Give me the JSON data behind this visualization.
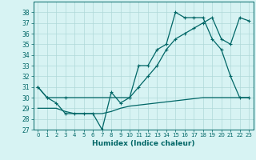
{
  "xlabel": "Humidex (Indice chaleur)",
  "background_color": "#d7f3f3",
  "grid_color": "#b0d8d8",
  "line_color": "#006666",
  "xlim": [
    -0.5,
    23.5
  ],
  "ylim": [
    27,
    39
  ],
  "yticks": [
    27,
    28,
    29,
    30,
    31,
    32,
    33,
    34,
    35,
    36,
    37,
    38
  ],
  "xticks": [
    0,
    1,
    2,
    3,
    4,
    5,
    6,
    7,
    8,
    9,
    10,
    11,
    12,
    13,
    14,
    15,
    16,
    17,
    18,
    19,
    20,
    21,
    22,
    23
  ],
  "series1_x": [
    0,
    1,
    2,
    3,
    4,
    5,
    6,
    7,
    8,
    9,
    10,
    11,
    12,
    13,
    14,
    15,
    16,
    17,
    18,
    19,
    20,
    21,
    22,
    23
  ],
  "series1_y": [
    31,
    30,
    29.5,
    28.5,
    28.5,
    28.5,
    28.5,
    27,
    30.5,
    29.5,
    30,
    33,
    33,
    34.5,
    35,
    38,
    37.5,
    37.5,
    37.5,
    35.5,
    34.5,
    32,
    30,
    30
  ],
  "series2_x": [
    0,
    1,
    3,
    10,
    11,
    12,
    13,
    14,
    15,
    16,
    17,
    18,
    19,
    20,
    21,
    22,
    23
  ],
  "series2_y": [
    31,
    30,
    30,
    30,
    31,
    32,
    33,
    34.5,
    35.5,
    36,
    36.5,
    37,
    37.5,
    35.5,
    35,
    37.5,
    37.2
  ],
  "series3_x": [
    0,
    1,
    2,
    3,
    4,
    5,
    6,
    7,
    8,
    9,
    10,
    11,
    12,
    13,
    14,
    15,
    16,
    17,
    18,
    19,
    20,
    21,
    22,
    23
  ],
  "series3_y": [
    29,
    29,
    29.0,
    28.7,
    28.5,
    28.5,
    28.5,
    28.5,
    28.7,
    29.0,
    29.2,
    29.3,
    29.4,
    29.5,
    29.6,
    29.7,
    29.8,
    29.9,
    30.0,
    30.0,
    30.0,
    30.0,
    30.0,
    30.0
  ]
}
